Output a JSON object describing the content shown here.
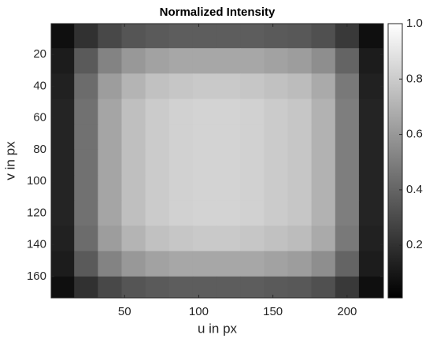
{
  "chart_data": {
    "type": "heatmap",
    "title": "Normalized Intensity",
    "x_label": "u in px",
    "y_label": "v in px",
    "colormap": "gray",
    "x": [
      8,
      24,
      40,
      56,
      72,
      88,
      104,
      120,
      136,
      152,
      168,
      184,
      200,
      216
    ],
    "y": [
      8,
      24,
      40,
      56,
      72,
      88,
      104,
      120,
      136,
      152,
      168
    ],
    "z": [
      [
        0.07,
        0.2,
        0.29,
        0.34,
        0.36,
        0.37,
        0.37,
        0.37,
        0.37,
        0.36,
        0.35,
        0.32,
        0.23,
        0.07
      ],
      [
        0.12,
        0.36,
        0.52,
        0.6,
        0.64,
        0.66,
        0.66,
        0.66,
        0.66,
        0.64,
        0.62,
        0.56,
        0.4,
        0.12
      ],
      [
        0.14,
        0.43,
        0.62,
        0.71,
        0.76,
        0.78,
        0.79,
        0.79,
        0.78,
        0.76,
        0.74,
        0.67,
        0.48,
        0.14
      ],
      [
        0.15,
        0.45,
        0.65,
        0.75,
        0.8,
        0.82,
        0.83,
        0.83,
        0.82,
        0.8,
        0.78,
        0.7,
        0.5,
        0.15
      ],
      [
        0.15,
        0.45,
        0.65,
        0.75,
        0.8,
        0.82,
        0.83,
        0.83,
        0.82,
        0.8,
        0.78,
        0.7,
        0.5,
        0.15
      ],
      [
        0.15,
        0.45,
        0.65,
        0.75,
        0.8,
        0.82,
        0.83,
        0.83,
        0.82,
        0.8,
        0.78,
        0.7,
        0.5,
        0.15
      ],
      [
        0.15,
        0.45,
        0.65,
        0.75,
        0.8,
        0.82,
        0.83,
        0.83,
        0.82,
        0.8,
        0.78,
        0.7,
        0.5,
        0.15
      ],
      [
        0.15,
        0.45,
        0.65,
        0.75,
        0.8,
        0.82,
        0.83,
        0.83,
        0.82,
        0.8,
        0.78,
        0.7,
        0.5,
        0.15
      ],
      [
        0.14,
        0.43,
        0.62,
        0.71,
        0.76,
        0.78,
        0.79,
        0.79,
        0.78,
        0.76,
        0.74,
        0.67,
        0.48,
        0.14
      ],
      [
        0.12,
        0.36,
        0.52,
        0.6,
        0.64,
        0.66,
        0.66,
        0.66,
        0.66,
        0.64,
        0.62,
        0.56,
        0.4,
        0.12
      ],
      [
        0.07,
        0.2,
        0.29,
        0.34,
        0.36,
        0.37,
        0.37,
        0.37,
        0.37,
        0.36,
        0.35,
        0.32,
        0.23,
        0.07
      ]
    ],
    "xlim": [
      0.5,
      224.5
    ],
    "xticks": [
      50,
      100,
      150,
      200
    ],
    "ylim": [
      0.5,
      173.5
    ],
    "yticks": [
      20,
      40,
      60,
      80,
      100,
      120,
      140,
      160
    ],
    "y_reversed": true,
    "clim": [
      0.01,
      1
    ],
    "colorbar_ticks": [
      0.2,
      0.4,
      0.6,
      0.8,
      {
        "value": 1,
        "label": "1.0"
      }
    ]
  }
}
